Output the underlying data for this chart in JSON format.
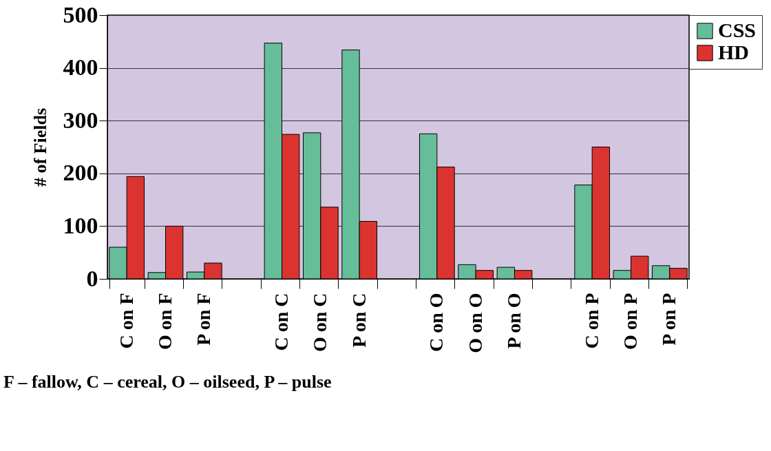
{
  "chart_data": {
    "type": "bar",
    "ylabel": "# of Fields",
    "categories": [
      "C on F",
      "O on F",
      "P on F",
      null,
      "C on C",
      "O on C",
      "P on C",
      null,
      "C on O",
      "O on O",
      "P on O",
      null,
      "C on P",
      "O on P",
      "P on P"
    ],
    "series": [
      {
        "name": "CSS",
        "color": "#66bd99",
        "values": [
          60,
          12,
          13,
          null,
          447,
          277,
          434,
          null,
          275,
          27,
          22,
          null,
          178,
          16,
          25
        ]
      },
      {
        "name": "HD",
        "color": "#db3430",
        "values": [
          194,
          100,
          30,
          null,
          274,
          136,
          109,
          null,
          212,
          16,
          16,
          null,
          250,
          43,
          20
        ]
      }
    ],
    "ylim": [
      0,
      500
    ],
    "yticks": [
      0,
      100,
      200,
      300,
      400,
      500
    ],
    "grid": "y",
    "legend": "right",
    "annotations": [
      "F – fallow,  C – cereal,  O – oilseed,  P – pulse"
    ]
  }
}
